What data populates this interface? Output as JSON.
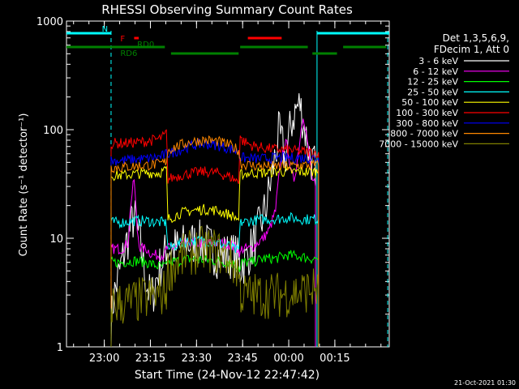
{
  "chart_data": {
    "type": "line",
    "title": "RHESSI Observing Summary Count Rates",
    "xlabel": "Start Time (24-Nov-12 22:47:42)",
    "ylabel": "Count Rate (s⁻¹ detector⁻¹)",
    "x_unit": "minutes after start time",
    "xlim": [
      0,
      105
    ],
    "ylim": [
      1,
      1000
    ],
    "y_scale": "log",
    "x_ticks": [
      {
        "x": 12.3,
        "label": "23:00"
      },
      {
        "x": 27.3,
        "label": "23:15"
      },
      {
        "x": 42.3,
        "label": "23:30"
      },
      {
        "x": 57.3,
        "label": "23:45"
      },
      {
        "x": 72.3,
        "label": "00:00"
      },
      {
        "x": 87.3,
        "label": "00:15"
      }
    ],
    "y_ticks": [
      {
        "y": 1,
        "label": "1"
      },
      {
        "y": 10,
        "label": "10"
      },
      {
        "y": 100,
        "label": "100"
      },
      {
        "y": 1000,
        "label": "1000"
      }
    ],
    "legend": {
      "header": [
        "Det 1,3,5,6,9,",
        "FDecim 1, Att 0"
      ],
      "placement": "right"
    },
    "series": [
      {
        "name": "3 - 6 keV",
        "color": "#ffffff",
        "x": [
          14.5,
          15,
          16,
          17,
          18,
          19,
          20,
          21,
          22,
          23,
          24,
          25,
          26,
          27,
          28,
          29,
          30,
          31,
          32,
          32.5,
          33,
          35,
          37,
          39,
          41,
          43,
          45,
          47,
          49,
          51,
          53,
          55,
          56,
          56.5,
          57,
          58,
          59,
          60,
          61,
          62,
          63,
          64,
          65,
          66,
          67,
          68,
          69,
          70,
          71,
          72,
          73,
          74,
          75,
          76,
          77,
          78,
          79,
          80,
          81
        ],
        "y": [
          1.5,
          2.5,
          3.5,
          4.5,
          6,
          8,
          10,
          13,
          16,
          12,
          9,
          6,
          4,
          3,
          3,
          4,
          5,
          6,
          7,
          8,
          8,
          8,
          8,
          9,
          9,
          9,
          9,
          8,
          7,
          7,
          7,
          7,
          6,
          5,
          6,
          6,
          7,
          8,
          9,
          11,
          13,
          16,
          20,
          28,
          40,
          60,
          90,
          75,
          55,
          70,
          110,
          140,
          160,
          170,
          120,
          85,
          60,
          50,
          45
        ]
      },
      {
        "name": "6 - 12 keV",
        "color": "#ff00ff",
        "x": [
          14.5,
          16,
          18,
          20,
          21,
          22,
          23,
          24,
          26,
          28,
          30,
          32,
          32.5,
          33,
          36,
          40,
          44,
          48,
          52,
          56,
          56.5,
          57,
          60,
          62,
          64,
          66,
          68,
          69,
          70,
          71,
          72,
          73,
          74,
          75,
          76,
          77,
          78,
          79,
          80,
          81
        ],
        "y": [
          8,
          8,
          8,
          9,
          22,
          35,
          12,
          8,
          8,
          7,
          7,
          7,
          8,
          8,
          8.5,
          9,
          9,
          9,
          9,
          8,
          7,
          8,
          8,
          9,
          10,
          12,
          18,
          35,
          55,
          75,
          70,
          40,
          35,
          50,
          85,
          140,
          95,
          55,
          35,
          30
        ]
      },
      {
        "name": "12 - 25 keV",
        "color": "#00ff00",
        "x": [
          14.5,
          18,
          22,
          26,
          30,
          32,
          32.5,
          33,
          37,
          41,
          45,
          49,
          53,
          56,
          56.5,
          57,
          60,
          64,
          68,
          72,
          76,
          80,
          81,
          82
        ],
        "y": [
          6,
          6,
          6.2,
          6,
          5.5,
          5.5,
          5.5,
          6,
          6.2,
          6.5,
          6.3,
          6.2,
          6,
          5.5,
          5,
          6,
          6,
          6.5,
          6.5,
          7,
          6.8,
          6.5,
          6.5,
          6.5
        ]
      },
      {
        "name": "25 - 50 keV",
        "color": "#00ffff",
        "x": [
          14.5,
          18,
          22,
          26,
          30,
          32,
          32.5,
          33,
          37,
          41,
          45,
          49,
          53,
          56,
          56.5,
          57,
          60,
          64,
          68,
          72,
          76,
          80,
          82
        ],
        "y": [
          14,
          14,
          14.5,
          14.5,
          14,
          14,
          13.5,
          8,
          9,
          9.5,
          9.5,
          9,
          8.5,
          7.5,
          13.5,
          14,
          14.5,
          15,
          15,
          15.5,
          15,
          15,
          15
        ]
      },
      {
        "name": "50 - 100 keV",
        "color": "#ffff00",
        "x": [
          14.5,
          18,
          22,
          26,
          30,
          32,
          32.5,
          33,
          37,
          41,
          45,
          49,
          53,
          56,
          56.5,
          57,
          60,
          64,
          68,
          72,
          76,
          80,
          82
        ],
        "y": [
          38,
          38,
          39,
          40,
          40,
          42,
          43,
          15,
          17,
          18,
          18.5,
          18,
          16.5,
          15,
          38,
          39,
          40,
          40,
          41,
          41,
          41,
          41,
          41
        ]
      },
      {
        "name": "100 - 300 keV",
        "color": "#ff0000",
        "x": [
          14.5,
          18,
          22,
          26,
          30,
          32,
          32.5,
          33,
          37,
          41,
          45,
          49,
          53,
          56,
          56.5,
          57,
          60,
          64,
          68,
          72,
          76,
          80,
          82
        ],
        "y": [
          75,
          75,
          76,
          78,
          82,
          88,
          95,
          35,
          38,
          40,
          41,
          40,
          37,
          33,
          90,
          80,
          72,
          68,
          66,
          65,
          63,
          62,
          62
        ]
      },
      {
        "name": "300 - 800 keV",
        "color": "#0000ff",
        "x": [
          14.5,
          18,
          22,
          26,
          30,
          32,
          32.5,
          33,
          37,
          41,
          45,
          49,
          53,
          56,
          56.5,
          57,
          60,
          64,
          68,
          72,
          76,
          80,
          82
        ],
        "y": [
          52,
          52,
          53,
          54,
          56,
          58,
          60,
          60,
          65,
          72,
          74,
          72,
          67,
          62,
          56,
          55,
          54,
          54,
          55,
          55,
          55,
          55,
          55
        ]
      },
      {
        "name": "800 - 7000 keV",
        "color": "#ff8800",
        "x": [
          14.5,
          18,
          22,
          26,
          30,
          32,
          32.5,
          33,
          37,
          41,
          45,
          49,
          53,
          56,
          56.5,
          57,
          60,
          64,
          68,
          72,
          76,
          80,
          82
        ],
        "y": [
          45,
          45,
          46,
          47,
          48,
          50,
          52,
          65,
          72,
          78,
          80,
          78,
          72,
          65,
          52,
          48,
          47,
          46,
          46,
          46,
          47,
          47,
          47
        ]
      },
      {
        "name": "7000 - 15000 keV",
        "color": "#808000",
        "x": [
          14.5,
          18,
          22,
          26,
          30,
          32,
          32.5,
          33,
          37,
          41,
          45,
          49,
          53,
          56,
          56.5,
          57,
          60,
          64,
          68,
          72,
          76,
          80,
          82
        ],
        "y": [
          2.5,
          2.5,
          2.6,
          2.8,
          3,
          3.2,
          3.4,
          5,
          6.5,
          7.5,
          8,
          7.5,
          6.5,
          5,
          3.4,
          3,
          3,
          3,
          3,
          3.1,
          3.2,
          3.4,
          3.4
        ]
      }
    ],
    "flag_bars": [
      {
        "label": "N",
        "color": "#00ffff",
        "level": 1,
        "segments": [
          [
            0,
            14.5
          ],
          [
            81.5,
            105
          ]
        ]
      },
      {
        "label": "F",
        "color": "#ff0000",
        "level": 2,
        "segments": [
          [
            22,
            23.5
          ],
          [
            59,
            70
          ]
        ]
      },
      {
        "label": "RD0",
        "color": "#008000",
        "level": 3,
        "segments": [
          [
            0,
            32
          ],
          [
            56.5,
            78.5
          ],
          [
            90,
            104
          ]
        ]
      },
      {
        "label": "RD6",
        "color": "#008000",
        "level": 4,
        "segments": [
          [
            34,
            56
          ],
          [
            80,
            88
          ]
        ]
      }
    ],
    "vertical_markers": [
      {
        "x": 14.5,
        "color": "#00ffff",
        "style": "dashed"
      },
      {
        "x": 81.5,
        "color": "#00ffff",
        "style": "solid"
      },
      {
        "x": 104.5,
        "color": "#00ffff",
        "style": "dashed"
      }
    ],
    "footer_date": "21-Oct-2021 01:30"
  }
}
